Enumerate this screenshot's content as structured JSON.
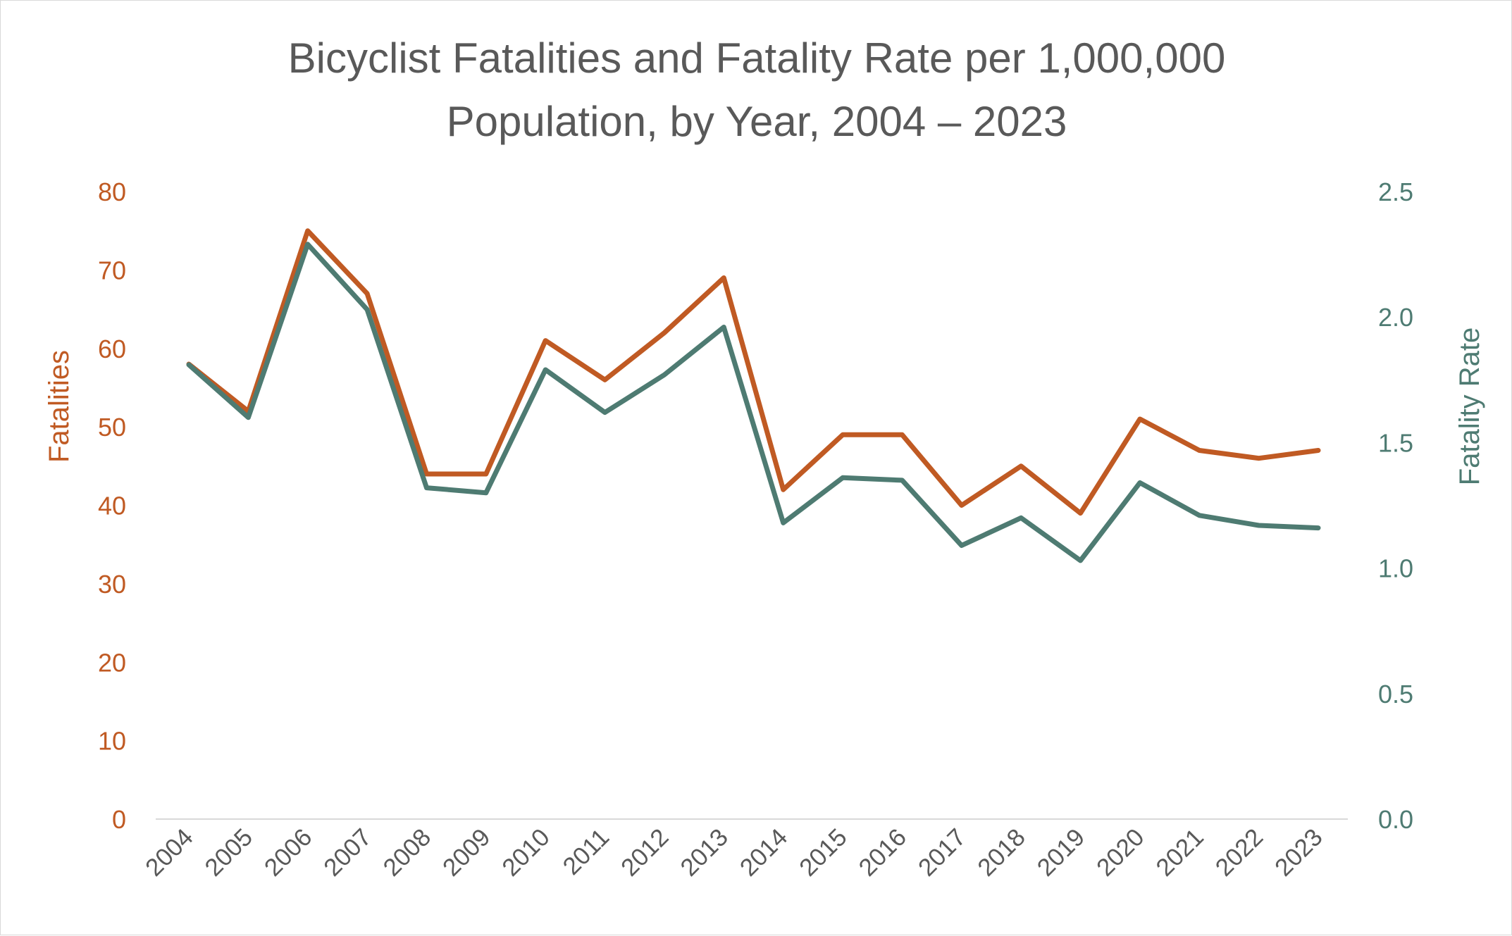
{
  "chart_data": {
    "type": "line",
    "title_lines": [
      "Bicyclist Fatalities and Fatality Rate per 1,000,000",
      "Population, by Year, 2004 – 2023"
    ],
    "categories": [
      "2004",
      "2005",
      "2006",
      "2007",
      "2008",
      "2009",
      "2010",
      "2011",
      "2012",
      "2013",
      "2014",
      "2015",
      "2016",
      "2017",
      "2018",
      "2019",
      "2020",
      "2021",
      "2022",
      "2023"
    ],
    "ylabel": "Fatalities",
    "y2label": "Fatality Rate",
    "ylim": [
      0,
      80
    ],
    "y2lim": [
      0,
      2.5
    ],
    "yticks": [
      "0",
      "10",
      "20",
      "30",
      "40",
      "50",
      "60",
      "70",
      "80"
    ],
    "y2ticks": [
      "0.0",
      "0.5",
      "1.0",
      "1.5",
      "2.0",
      "2.5"
    ],
    "grid": false,
    "legend": "none",
    "series": [
      {
        "axis": "left",
        "color": "#c05a23",
        "values": [
          58,
          52,
          75,
          67,
          44,
          44,
          61,
          56,
          62,
          69,
          42,
          49,
          49,
          40,
          45,
          39,
          51,
          47,
          46,
          47
        ]
      },
      {
        "axis": "right",
        "color": "#4e7b72",
        "values": [
          1.81,
          1.6,
          2.29,
          2.03,
          1.32,
          1.3,
          1.79,
          1.62,
          1.77,
          1.96,
          1.18,
          1.36,
          1.35,
          1.09,
          1.2,
          1.03,
          1.34,
          1.21,
          1.17,
          1.16
        ]
      }
    ]
  }
}
